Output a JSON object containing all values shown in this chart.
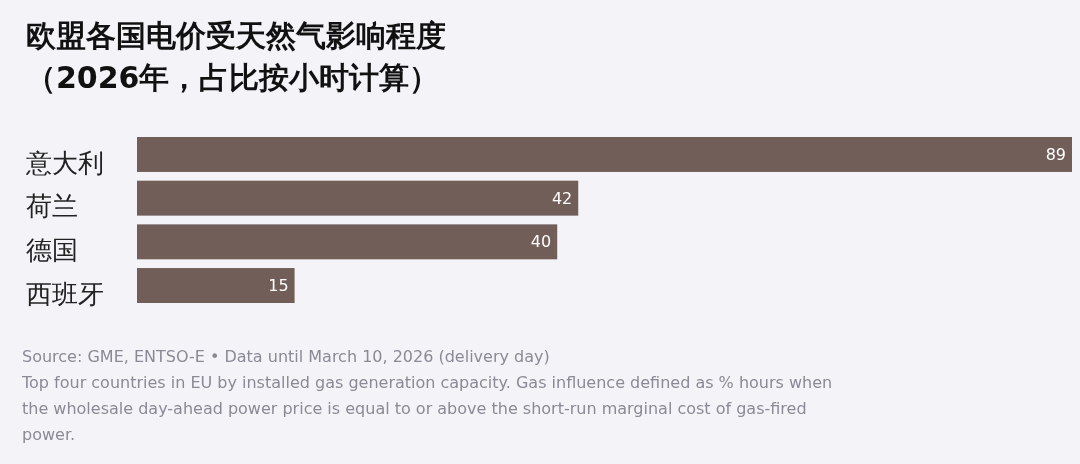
{
  "chart_data": {
    "type": "bar",
    "orientation": "horizontal",
    "title": "欧盟各国电价受天然气影响程度",
    "subtitle": "（2026年，占比按小时计算）",
    "categories": [
      "意大利",
      "荷兰",
      "德国",
      "西班牙"
    ],
    "values": [
      89,
      42,
      40,
      15
    ],
    "color": "#725e58",
    "data_labels": true,
    "annotations": [
      "Source: GME, ENTSO-E • Data until March 10, 2026 (delivery day)",
      "Top four countries in EU by installed gas generation capacity. Gas influence defined as % hours when the wholesale day-ahead power price is equal to or above the short-run marginal cost of gas-fired power."
    ]
  }
}
